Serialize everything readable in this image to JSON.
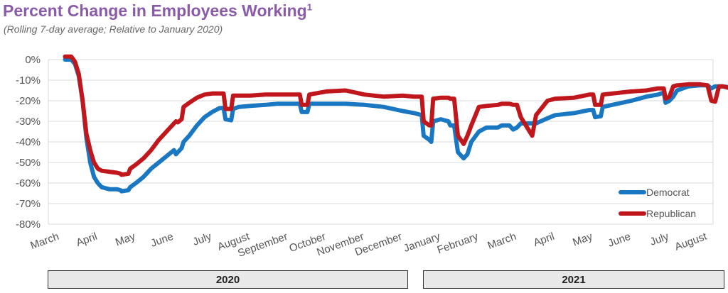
{
  "title": {
    "text": "Percent Change in Employees Working",
    "footnote": "1"
  },
  "subtitle": "(Rolling 7-day average; Relative to January 2020)",
  "chart_data": {
    "type": "line",
    "title": "Percent Change in Employees Working",
    "subtitle": "(Rolling 7-day average; Relative to January 2020)",
    "ylim": [
      -80,
      0
    ],
    "y_ticks": [
      "0%",
      "-10%",
      "-20%",
      "-30%",
      "-40%",
      "-50%",
      "-60%",
      "-70%",
      "-80%"
    ],
    "y_tick_values": [
      0,
      -10,
      -20,
      -30,
      -40,
      -50,
      -60,
      -70,
      -80
    ],
    "x_ticks": [
      "March",
      "April",
      "May",
      "June",
      "July",
      "August",
      "September",
      "October",
      "November",
      "December",
      "January",
      "February",
      "March",
      "April",
      "May",
      "June",
      "July",
      "August"
    ],
    "x_axis_unit": "month index (0 = March 2020 tick, 17 = August 2021 tick)",
    "grid": true,
    "legend_position": "bottom-right",
    "series": [
      {
        "name": "Democrat",
        "color": "#1a78c2",
        "points": [
          [
            0.14,
            0
          ],
          [
            0.3,
            0
          ],
          [
            0.4,
            -2
          ],
          [
            0.5,
            -8
          ],
          [
            0.6,
            -20
          ],
          [
            0.7,
            -38
          ],
          [
            0.8,
            -50
          ],
          [
            0.9,
            -57
          ],
          [
            1.0,
            -60
          ],
          [
            1.1,
            -62
          ],
          [
            1.3,
            -63
          ],
          [
            1.5,
            -63
          ],
          [
            1.6,
            -63.5
          ],
          [
            1.62,
            -64
          ],
          [
            1.8,
            -63.5
          ],
          [
            1.85,
            -62
          ],
          [
            2.0,
            -60
          ],
          [
            2.2,
            -57
          ],
          [
            2.4,
            -53
          ],
          [
            2.6,
            -50
          ],
          [
            2.8,
            -47
          ],
          [
            3.0,
            -44
          ],
          [
            3.05,
            -46
          ],
          [
            3.1,
            -45
          ],
          [
            3.2,
            -43
          ],
          [
            3.25,
            -40
          ],
          [
            3.4,
            -37
          ],
          [
            3.6,
            -32
          ],
          [
            3.8,
            -28
          ],
          [
            4.0,
            -25.5
          ],
          [
            4.2,
            -23.5
          ],
          [
            4.3,
            -23.5
          ],
          [
            4.35,
            -29
          ],
          [
            4.5,
            -29.5
          ],
          [
            4.55,
            -24
          ],
          [
            4.7,
            -23
          ],
          [
            5.0,
            -22.5
          ],
          [
            5.4,
            -22
          ],
          [
            5.7,
            -21.5
          ],
          [
            6.0,
            -21.5
          ],
          [
            6.3,
            -21.5
          ],
          [
            6.35,
            -25.5
          ],
          [
            6.5,
            -25.5
          ],
          [
            6.55,
            -21.5
          ],
          [
            7.0,
            -21.5
          ],
          [
            7.5,
            -21.5
          ],
          [
            8.0,
            -22
          ],
          [
            8.5,
            -23
          ],
          [
            9.0,
            -25
          ],
          [
            9.3,
            -26
          ],
          [
            9.5,
            -27
          ],
          [
            9.55,
            -37
          ],
          [
            9.7,
            -39
          ],
          [
            9.75,
            -40
          ],
          [
            9.8,
            -30
          ],
          [
            10.0,
            -29
          ],
          [
            10.2,
            -30
          ],
          [
            10.25,
            -32
          ],
          [
            10.35,
            -32
          ],
          [
            10.45,
            -45
          ],
          [
            10.6,
            -48
          ],
          [
            10.7,
            -46
          ],
          [
            10.8,
            -40
          ],
          [
            11.0,
            -35
          ],
          [
            11.2,
            -33
          ],
          [
            11.5,
            -33
          ],
          [
            11.6,
            -32
          ],
          [
            11.8,
            -32
          ],
          [
            11.9,
            -34
          ],
          [
            12.0,
            -33
          ],
          [
            12.1,
            -31
          ],
          [
            12.4,
            -31
          ],
          [
            12.5,
            -31
          ],
          [
            12.8,
            -28.5
          ],
          [
            13.0,
            -27
          ],
          [
            13.5,
            -26
          ],
          [
            13.9,
            -24.5
          ],
          [
            14.0,
            -24.5
          ],
          [
            14.05,
            -28
          ],
          [
            14.2,
            -27.5
          ],
          [
            14.25,
            -23
          ],
          [
            14.5,
            -22
          ],
          [
            15.0,
            -20
          ],
          [
            15.4,
            -18
          ],
          [
            15.7,
            -17
          ],
          [
            15.85,
            -16
          ],
          [
            15.9,
            -21
          ],
          [
            16.0,
            -20
          ],
          [
            16.1,
            -18
          ],
          [
            16.2,
            -15
          ],
          [
            16.5,
            -13
          ],
          [
            16.8,
            -12.5
          ],
          [
            17.0,
            -12.5
          ],
          [
            17.1,
            -14
          ],
          [
            17.2,
            -13
          ],
          [
            17.4,
            -13
          ],
          [
            17.6,
            -13.5
          ]
        ]
      },
      {
        "name": "Republican",
        "color": "#c0171c",
        "points": [
          [
            0.14,
            1.5
          ],
          [
            0.3,
            1.5
          ],
          [
            0.4,
            -1
          ],
          [
            0.5,
            -7
          ],
          [
            0.6,
            -20
          ],
          [
            0.7,
            -36
          ],
          [
            0.8,
            -44
          ],
          [
            0.9,
            -50
          ],
          [
            1.0,
            -53
          ],
          [
            1.1,
            -54
          ],
          [
            1.3,
            -54.5
          ],
          [
            1.5,
            -55
          ],
          [
            1.6,
            -55.5
          ],
          [
            1.62,
            -56
          ],
          [
            1.8,
            -55.5
          ],
          [
            1.85,
            -53
          ],
          [
            2.0,
            -51
          ],
          [
            2.2,
            -48
          ],
          [
            2.4,
            -44
          ],
          [
            2.6,
            -39
          ],
          [
            2.8,
            -35
          ],
          [
            3.0,
            -31
          ],
          [
            3.05,
            -30
          ],
          [
            3.1,
            -30.5
          ],
          [
            3.2,
            -29
          ],
          [
            3.25,
            -23
          ],
          [
            3.4,
            -21
          ],
          [
            3.6,
            -18.5
          ],
          [
            3.8,
            -17
          ],
          [
            4.0,
            -16.5
          ],
          [
            4.2,
            -16.5
          ],
          [
            4.3,
            -16.5
          ],
          [
            4.35,
            -24
          ],
          [
            4.5,
            -24
          ],
          [
            4.55,
            -17.5
          ],
          [
            4.7,
            -17.5
          ],
          [
            5.0,
            -17.5
          ],
          [
            5.4,
            -17
          ],
          [
            5.7,
            -17
          ],
          [
            6.0,
            -17
          ],
          [
            6.3,
            -17
          ],
          [
            6.35,
            -22
          ],
          [
            6.5,
            -22
          ],
          [
            6.55,
            -17
          ],
          [
            7.0,
            -15.5
          ],
          [
            7.5,
            -15
          ],
          [
            8.0,
            -17
          ],
          [
            8.5,
            -18
          ],
          [
            9.0,
            -17.5
          ],
          [
            9.3,
            -18
          ],
          [
            9.5,
            -18
          ],
          [
            9.55,
            -30
          ],
          [
            9.7,
            -32
          ],
          [
            9.75,
            -32
          ],
          [
            9.8,
            -19
          ],
          [
            10.0,
            -18.5
          ],
          [
            10.2,
            -18.5
          ],
          [
            10.25,
            -19
          ],
          [
            10.35,
            -19
          ],
          [
            10.45,
            -37
          ],
          [
            10.6,
            -41
          ],
          [
            10.7,
            -37
          ],
          [
            10.8,
            -32
          ],
          [
            11.0,
            -23
          ],
          [
            11.2,
            -22.5
          ],
          [
            11.5,
            -22
          ],
          [
            11.6,
            -21.5
          ],
          [
            11.8,
            -21.5
          ],
          [
            11.9,
            -22
          ],
          [
            12.0,
            -22
          ],
          [
            12.1,
            -28
          ],
          [
            12.4,
            -37
          ],
          [
            12.5,
            -27
          ],
          [
            12.8,
            -20
          ],
          [
            13.0,
            -19
          ],
          [
            13.5,
            -18.5
          ],
          [
            13.9,
            -17
          ],
          [
            14.0,
            -17
          ],
          [
            14.05,
            -22
          ],
          [
            14.2,
            -22
          ],
          [
            14.25,
            -17
          ],
          [
            14.5,
            -16.5
          ],
          [
            15.0,
            -15.5
          ],
          [
            15.4,
            -15
          ],
          [
            15.7,
            -14
          ],
          [
            15.85,
            -14
          ],
          [
            15.9,
            -19
          ],
          [
            16.0,
            -18
          ],
          [
            16.1,
            -13
          ],
          [
            16.2,
            -12.5
          ],
          [
            16.5,
            -12
          ],
          [
            16.8,
            -12
          ],
          [
            17.0,
            -12.5
          ],
          [
            17.1,
            -20
          ],
          [
            17.2,
            -20.5
          ],
          [
            17.3,
            -13
          ],
          [
            17.4,
            -13
          ],
          [
            17.6,
            -14
          ]
        ]
      }
    ],
    "year_labels": [
      "2020",
      "2021"
    ]
  }
}
